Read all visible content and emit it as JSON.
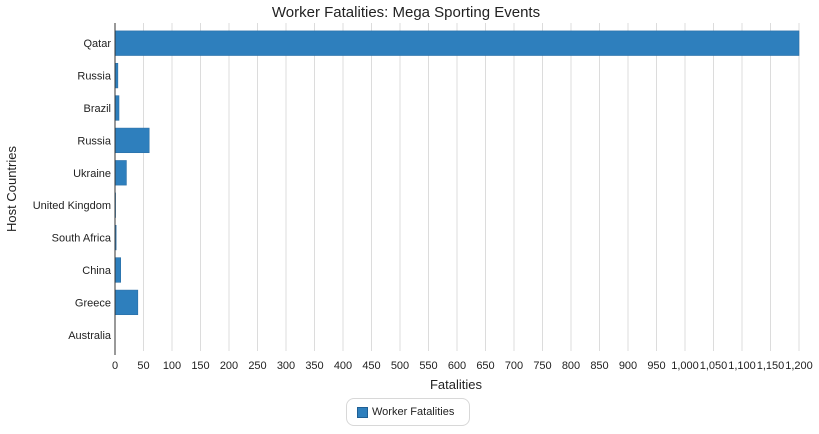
{
  "chart_data": {
    "type": "bar",
    "orientation": "horizontal",
    "title": "Worker Fatalities: Mega Sporting Events",
    "xlabel": "Fatalities",
    "ylabel": "Host Countries",
    "categories": [
      "Qatar",
      "Russia",
      "Brazil",
      "Russia",
      "Ukraine",
      "United Kingdom",
      "South Africa",
      "China",
      "Greece",
      "Australia"
    ],
    "series": [
      {
        "name": "Worker Fatalities",
        "values": [
          1200,
          5,
          7,
          60,
          20,
          1,
          2,
          10,
          40,
          0
        ]
      }
    ],
    "xlim": [
      0,
      1200
    ],
    "xticks": [
      0,
      50,
      100,
      150,
      200,
      250,
      300,
      350,
      400,
      450,
      500,
      550,
      600,
      650,
      700,
      750,
      800,
      850,
      900,
      950,
      1000,
      1050,
      1100,
      1150,
      1200
    ],
    "xtick_labels": [
      "0",
      "50",
      "100",
      "150",
      "200",
      "250",
      "300",
      "350",
      "400",
      "450",
      "500",
      "550",
      "600",
      "650",
      "700",
      "750",
      "800",
      "850",
      "900",
      "950",
      "1,000",
      "1,050",
      "1,100",
      "1,150",
      "1,200"
    ],
    "grid": "vertical",
    "legend_position": "bottom-center",
    "bar_color": "#2e7fbd"
  }
}
